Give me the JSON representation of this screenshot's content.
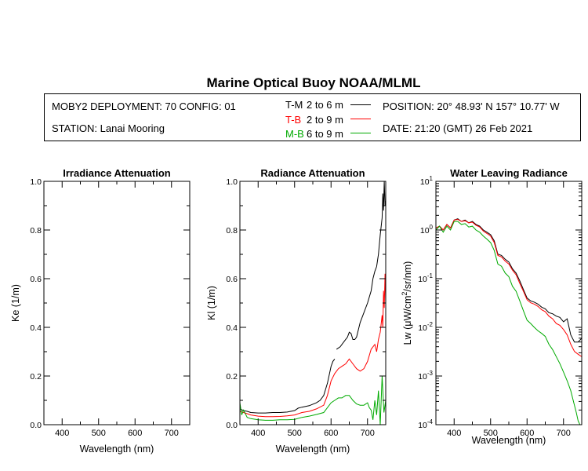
{
  "title": "Marine Optical Buoy NOAA/MLML",
  "info": {
    "deployment": "MOBY2 DEPLOYMENT: 70 CONFIG: 01",
    "station": "STATION: Lanai Mooring",
    "position": "POSITION: 20° 48.93' N   157° 10.77' W",
    "date": "DATE: 21:20 (GMT) 26 Feb 2021"
  },
  "legend": [
    {
      "code": "T-M",
      "range": "2 to 6  m",
      "color": "#000000"
    },
    {
      "code": "T-B",
      "range": "2 to 9  m",
      "color": "#ff0000"
    },
    {
      "code": "M-B",
      "range": "6 to 9  m",
      "color": "#00aa00"
    }
  ],
  "chart_data": [
    {
      "type": "line",
      "title": "Irradiance Attenuation",
      "xlabel": "Wavelength (nm)",
      "ylabel": "Ke  (1/m)",
      "xlim": [
        350,
        750
      ],
      "ylim": [
        0.0,
        1.0
      ],
      "xticks": [
        "400",
        "500",
        "600",
        "700"
      ],
      "yticks": [
        "0.0",
        "0.2",
        "0.4",
        "0.6",
        "0.8",
        "1.0"
      ],
      "series": []
    },
    {
      "type": "line",
      "title": "Radiance Attenuation",
      "xlabel": "Wavelength (nm)",
      "ylabel": "Kl  (1/m)",
      "xlim": [
        350,
        750
      ],
      "ylim": [
        0.0,
        1.0
      ],
      "xticks": [
        "400",
        "500",
        "600",
        "700"
      ],
      "yticks": [
        "0.0",
        "0.2",
        "0.4",
        "0.6",
        "0.8",
        "1.0"
      ],
      "series": [
        {
          "name": "T-M",
          "color": "#000000",
          "x": [
            350,
            360,
            370,
            380,
            400,
            420,
            440,
            460,
            480,
            500,
            510,
            520,
            540,
            560,
            570,
            580,
            590,
            600,
            605,
            610
          ],
          "y": [
            0.065,
            0.058,
            0.055,
            0.05,
            0.048,
            0.048,
            0.05,
            0.05,
            0.052,
            0.058,
            0.068,
            0.072,
            0.078,
            0.09,
            0.1,
            0.12,
            0.17,
            0.24,
            0.26,
            0.27
          ]
        },
        {
          "name": "T-M",
          "color": "#000000",
          "x": [
            615,
            625,
            635,
            645,
            650,
            655,
            660,
            665,
            670,
            680,
            690,
            700,
            710,
            715,
            720,
            725,
            730,
            735,
            740,
            742,
            744,
            746,
            748,
            750
          ],
          "y": [
            0.31,
            0.32,
            0.34,
            0.36,
            0.38,
            0.375,
            0.35,
            0.35,
            0.36,
            0.42,
            0.46,
            0.5,
            0.55,
            0.6,
            0.63,
            0.65,
            0.7,
            0.78,
            0.85,
            0.95,
            0.88,
            1.0,
            0.9,
            0.92
          ]
        },
        {
          "name": "T-B",
          "color": "#ff0000",
          "x": [
            350,
            360,
            370,
            380,
            400,
            420,
            440,
            460,
            480,
            500,
            520,
            540,
            560,
            580,
            590,
            600,
            610,
            620,
            630,
            640,
            650,
            660,
            670,
            680,
            690,
            700,
            710,
            720,
            725,
            730,
            735,
            740,
            742,
            744,
            746,
            748,
            750
          ],
          "y": [
            0.055,
            0.05,
            0.045,
            0.04,
            0.035,
            0.033,
            0.033,
            0.034,
            0.036,
            0.04,
            0.05,
            0.055,
            0.065,
            0.08,
            0.12,
            0.18,
            0.21,
            0.23,
            0.24,
            0.25,
            0.27,
            0.25,
            0.23,
            0.22,
            0.23,
            0.26,
            0.31,
            0.33,
            0.3,
            0.35,
            0.38,
            0.45,
            0.4,
            0.55,
            0.48,
            0.62,
            0.5
          ]
        },
        {
          "name": "M-B",
          "color": "#00aa00",
          "x": [
            350,
            355,
            360,
            370,
            380,
            400,
            420,
            440,
            460,
            480,
            500,
            520,
            540,
            560,
            580,
            590,
            600,
            610,
            620,
            630,
            640,
            650,
            660,
            670,
            680,
            690,
            700,
            705,
            710,
            715,
            720,
            725,
            730,
            735,
            740,
            745,
            750
          ],
          "y": [
            0.09,
            0.04,
            0.06,
            0.03,
            0.025,
            0.02,
            0.018,
            0.018,
            0.02,
            0.02,
            0.022,
            0.03,
            0.035,
            0.042,
            0.05,
            0.07,
            0.09,
            0.1,
            0.11,
            0.11,
            0.12,
            0.12,
            0.1,
            0.085,
            0.08,
            0.08,
            0.09,
            0.07,
            0.06,
            0.02,
            0.1,
            0.04,
            0.14,
            0.0,
            0.2,
            0.05,
            0.1
          ]
        }
      ]
    },
    {
      "type": "line",
      "title": "Water Leaving Radiance",
      "xlabel": "Wavelength (nm)",
      "ylabel": "Lw  (μW/cm²/sr/nm)",
      "yscale": "log",
      "xlim": [
        350,
        750
      ],
      "ylim": [
        0.0001,
        10
      ],
      "xticks": [
        "400",
        "500",
        "600",
        "700"
      ],
      "yticks": [
        {
          "base": "10",
          "exp": "1"
        },
        {
          "base": "10",
          "exp": "0"
        },
        {
          "base": "10",
          "exp": "-1"
        },
        {
          "base": "10",
          "exp": "-2"
        },
        {
          "base": "10",
          "exp": "-3"
        },
        {
          "base": "10",
          "exp": "-4"
        }
      ],
      "series": [
        {
          "name": "T-M",
          "color": "#000000",
          "x": [
            350,
            360,
            370,
            380,
            390,
            400,
            410,
            420,
            430,
            440,
            450,
            460,
            470,
            480,
            490,
            500,
            510,
            520,
            530,
            540,
            550,
            560,
            570,
            580,
            590,
            600,
            610,
            620,
            630,
            640,
            650,
            660,
            670,
            680,
            690,
            700,
            710,
            720,
            730,
            740,
            750
          ],
          "y": [
            1.1,
            1.2,
            1.0,
            1.3,
            1.1,
            1.6,
            1.7,
            1.5,
            1.6,
            1.4,
            1.5,
            1.3,
            1.2,
            1.0,
            0.9,
            0.8,
            0.6,
            0.32,
            0.3,
            0.25,
            0.22,
            0.16,
            0.13,
            0.09,
            0.06,
            0.04,
            0.035,
            0.033,
            0.03,
            0.026,
            0.024,
            0.02,
            0.019,
            0.017,
            0.016,
            0.013,
            0.015,
            0.007,
            0.005,
            0.005,
            0.006
          ]
        },
        {
          "name": "T-B",
          "color": "#ff0000",
          "x": [
            350,
            360,
            370,
            380,
            390,
            400,
            410,
            420,
            430,
            440,
            450,
            460,
            470,
            480,
            490,
            500,
            510,
            520,
            530,
            540,
            550,
            560,
            570,
            580,
            590,
            600,
            610,
            620,
            630,
            640,
            650,
            660,
            670,
            680,
            690,
            700,
            710,
            720,
            730,
            740,
            750
          ],
          "y": [
            1.1,
            1.2,
            1.0,
            1.3,
            1.1,
            1.6,
            1.65,
            1.5,
            1.55,
            1.4,
            1.45,
            1.25,
            1.15,
            0.95,
            0.85,
            0.75,
            0.55,
            0.3,
            0.28,
            0.23,
            0.2,
            0.15,
            0.12,
            0.08,
            0.055,
            0.037,
            0.032,
            0.03,
            0.027,
            0.023,
            0.021,
            0.017,
            0.015,
            0.012,
            0.011,
            0.009,
            0.007,
            0.0045,
            0.0032,
            0.0028,
            0.0025
          ]
        },
        {
          "name": "M-B",
          "color": "#00aa00",
          "x": [
            350,
            360,
            370,
            380,
            390,
            400,
            410,
            420,
            430,
            440,
            450,
            460,
            470,
            480,
            490,
            500,
            510,
            520,
            530,
            540,
            550,
            560,
            570,
            580,
            590,
            600,
            610,
            620,
            630,
            640,
            650,
            660,
            670,
            680,
            690,
            700,
            710,
            720,
            730,
            735,
            740,
            745,
            750
          ],
          "y": [
            1.0,
            1.2,
            0.9,
            1.2,
            1.0,
            1.5,
            1.5,
            1.3,
            1.35,
            1.15,
            1.2,
            1.0,
            0.9,
            0.75,
            0.65,
            0.55,
            0.38,
            0.2,
            0.18,
            0.13,
            0.11,
            0.07,
            0.055,
            0.035,
            0.022,
            0.014,
            0.012,
            0.01,
            0.0085,
            0.0075,
            0.0065,
            0.0045,
            0.0035,
            0.0025,
            0.0018,
            0.0012,
            0.0008,
            0.0005,
            0.00025,
            0.00018,
            0.00012,
            9e-05,
            8e-05
          ]
        }
      ]
    }
  ]
}
